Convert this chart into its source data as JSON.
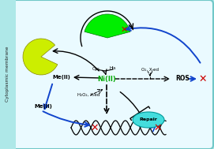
{
  "bg_outer": "#aee8e8",
  "bg_inner": "#eafaff",
  "cell_border_color": "#70c8c8",
  "green_protein_color": "#00ee00",
  "yellow_protein_color": "#ccee00",
  "cyan_repair_color": "#44dddd",
  "red_x_color": "#cc0000",
  "blue_arrow_color": "#1144cc",
  "ni_label": "Ni(II)",
  "ni_color": "#00aa00",
  "me_label": "Me(II)",
  "ros_label": "ROS",
  "repair_label": "Repair",
  "cys_label": "Cys",
  "his_label": "His",
  "h2o2_label": "H₂O₂, Xᵣed",
  "o2_label": "O₂, Xᵣed",
  "cytoplasmic_label": "Cytoplasmic membrane",
  "figsize": [
    2.71,
    1.89
  ],
  "dpi": 100
}
